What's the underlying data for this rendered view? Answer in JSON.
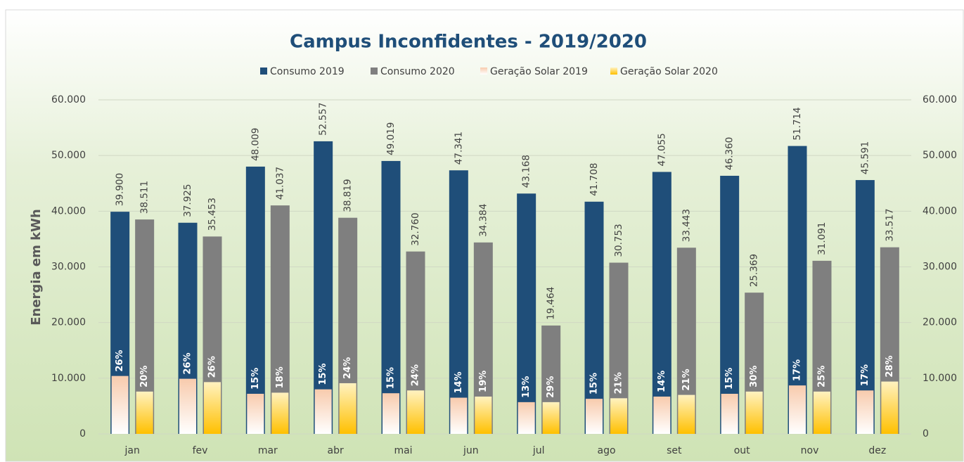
{
  "chart_data": {
    "type": "bar",
    "title": "Campus Inconfidentes - 2019/2020",
    "y_label": "Energia em kWh",
    "categories": [
      "jan",
      "fev",
      "mar",
      "abr",
      "mai",
      "jun",
      "jul",
      "ago",
      "set",
      "out",
      "nov",
      "dez"
    ],
    "series": [
      {
        "name": "Consumo 2019",
        "color": "#1f4e79",
        "values": [
          39900,
          37925,
          48009,
          52557,
          49019,
          47341,
          43168,
          41708,
          47055,
          46360,
          51714,
          45591
        ],
        "value_labels": [
          "39.900",
          "37.925",
          "48.009",
          "52.557",
          "49.019",
          "47.341",
          "43.168",
          "41.708",
          "47.055",
          "46.360",
          "51.714",
          "45.591"
        ]
      },
      {
        "name": "Consumo 2020",
        "color": "#7f7f7f",
        "values": [
          38511,
          35453,
          41037,
          38819,
          32760,
          34384,
          19464,
          30753,
          33443,
          25369,
          31091,
          33517
        ],
        "value_labels": [
          "38.511",
          "35.453",
          "41.037",
          "38.819",
          "32.760",
          "34.384",
          "19.464",
          "30.753",
          "33.443",
          "25.369",
          "31.091",
          "33.517"
        ]
      },
      {
        "name": "Geração Solar 2019",
        "color": "#f8cbad",
        "values": [
          10400,
          9900,
          7200,
          8000,
          7300,
          6500,
          5700,
          6300,
          6700,
          7200,
          8700,
          7800
        ],
        "percent": [
          26,
          26,
          15,
          15,
          15,
          14,
          13,
          15,
          14,
          15,
          17,
          17
        ],
        "percent_labels": [
          "26%",
          "26%",
          "15%",
          "15%",
          "15%",
          "14%",
          "13%",
          "15%",
          "14%",
          "15%",
          "17%",
          "17%"
        ]
      },
      {
        "name": "Geração Solar 2020",
        "color": "#ffc000",
        "values": [
          7600,
          9300,
          7400,
          9100,
          7800,
          6700,
          5700,
          6400,
          7000,
          7600,
          7600,
          9400
        ],
        "percent": [
          20,
          26,
          18,
          24,
          24,
          19,
          29,
          21,
          21,
          30,
          25,
          28
        ],
        "percent_labels": [
          "20%",
          "26%",
          "18%",
          "24%",
          "24%",
          "19%",
          "29%",
          "21%",
          "21%",
          "30%",
          "25%",
          "28%"
        ]
      }
    ],
    "ylim": [
      0,
      60000
    ],
    "yticks": [
      0,
      {
        "value": 10000,
        "label": "10.000"
      },
      {
        "value": 20000,
        "label": "20.000"
      },
      {
        "value": 30000,
        "label": "30.000"
      },
      {
        "value": 40000,
        "label": "40.000"
      },
      {
        "value": 50000,
        "label": "50.000"
      },
      {
        "value": 60000,
        "label": "60.000"
      }
    ],
    "y2lim": [
      0,
      60000
    ],
    "y2ticks": [
      0,
      {
        "value": 10000,
        "label": "10.000"
      },
      {
        "value": 20000,
        "label": "20.000"
      },
      {
        "value": 30000,
        "label": "30.000"
      },
      {
        "value": 40000,
        "label": "40.000"
      },
      {
        "value": 50000,
        "label": "50.000"
      },
      {
        "value": 60000,
        "label": "60.000"
      }
    ],
    "grid": true,
    "legend": "top"
  }
}
